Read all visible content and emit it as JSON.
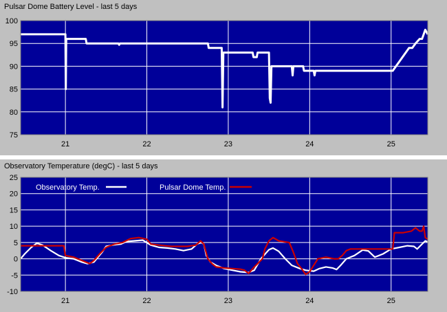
{
  "chart_data": [
    {
      "type": "line",
      "title": "Pulsar Dome Battery Level - last 5 days",
      "xlim": [
        20.45,
        25.45
      ],
      "ylim": [
        75,
        100
      ],
      "x_ticks": [
        21,
        22,
        23,
        24,
        25
      ],
      "y_ticks": [
        75,
        80,
        85,
        90,
        95,
        100
      ],
      "grid": true,
      "colors": {
        "plot_bg": "#000099",
        "grid": "#ffffff",
        "line": "#ffffff"
      },
      "series": [
        {
          "color": "#ffffff",
          "points": [
            [
              20.45,
              97
            ],
            [
              21.0,
              97
            ],
            [
              21.005,
              85
            ],
            [
              21.01,
              96
            ],
            [
              21.25,
              96
            ],
            [
              21.26,
              95
            ],
            [
              21.65,
              95
            ],
            [
              21.66,
              94.7
            ],
            [
              21.67,
              95
            ],
            [
              22.75,
              95
            ],
            [
              22.76,
              94
            ],
            [
              22.92,
              94
            ],
            [
              22.93,
              81
            ],
            [
              22.94,
              93
            ],
            [
              23.3,
              93
            ],
            [
              23.31,
              92
            ],
            [
              23.35,
              92
            ],
            [
              23.36,
              93
            ],
            [
              23.5,
              93
            ],
            [
              23.51,
              83
            ],
            [
              23.52,
              82
            ],
            [
              23.53,
              90
            ],
            [
              23.78,
              90
            ],
            [
              23.79,
              88
            ],
            [
              23.8,
              90
            ],
            [
              23.92,
              90
            ],
            [
              23.93,
              89
            ],
            [
              24.05,
              89
            ],
            [
              24.06,
              88
            ],
            [
              24.07,
              89
            ],
            [
              24.3,
              89
            ],
            [
              24.6,
              89
            ],
            [
              25.02,
              89
            ],
            [
              25.06,
              90
            ],
            [
              25.1,
              91
            ],
            [
              25.14,
              92
            ],
            [
              25.18,
              93
            ],
            [
              25.22,
              94
            ],
            [
              25.26,
              94
            ],
            [
              25.3,
              95
            ],
            [
              25.35,
              96
            ],
            [
              25.38,
              96
            ],
            [
              25.4,
              97
            ],
            [
              25.42,
              98
            ],
            [
              25.45,
              97
            ]
          ]
        }
      ]
    },
    {
      "type": "line",
      "title": "Observatory Temperature (degC) - last 5 days",
      "xlim": [
        20.45,
        25.45
      ],
      "ylim": [
        -10,
        25
      ],
      "x_ticks": [
        21,
        22,
        23,
        24,
        25
      ],
      "y_ticks": [
        -10,
        -5,
        0,
        5,
        10,
        15,
        20,
        25
      ],
      "grid": true,
      "legend": "top",
      "colors": {
        "plot_bg": "#000099",
        "grid": "#ffffff"
      },
      "series": [
        {
          "name": "Observatory Temp.",
          "color": "#ffffff",
          "points": [
            [
              20.45,
              0
            ],
            [
              20.5,
              1.5
            ],
            [
              20.58,
              3.5
            ],
            [
              20.65,
              4.8
            ],
            [
              20.72,
              4.2
            ],
            [
              20.82,
              2.5
            ],
            [
              20.92,
              1
            ],
            [
              21.0,
              0.3
            ],
            [
              21.1,
              0
            ],
            [
              21.2,
              -1
            ],
            [
              21.27,
              -1.5
            ],
            [
              21.35,
              -1
            ],
            [
              21.45,
              2
            ],
            [
              21.5,
              3.8
            ],
            [
              21.6,
              4.3
            ],
            [
              21.68,
              4.5
            ],
            [
              21.75,
              5.3
            ],
            [
              21.85,
              5.5
            ],
            [
              21.95,
              5.7
            ],
            [
              22.05,
              4.2
            ],
            [
              22.15,
              3.5
            ],
            [
              22.25,
              3.3
            ],
            [
              22.35,
              3
            ],
            [
              22.45,
              2.5
            ],
            [
              22.55,
              3
            ],
            [
              22.62,
              4.6
            ],
            [
              22.67,
              5
            ],
            [
              22.7,
              4.5
            ],
            [
              22.73,
              1
            ],
            [
              22.78,
              -1
            ],
            [
              22.85,
              -2
            ],
            [
              22.95,
              -3
            ],
            [
              23.05,
              -3.5
            ],
            [
              23.15,
              -4
            ],
            [
              23.25,
              -4.2
            ],
            [
              23.32,
              -3.5
            ],
            [
              23.4,
              0
            ],
            [
              23.5,
              2.8
            ],
            [
              23.55,
              3.3
            ],
            [
              23.62,
              2.3
            ],
            [
              23.7,
              0
            ],
            [
              23.78,
              -2
            ],
            [
              23.88,
              -3
            ],
            [
              23.95,
              -3.5
            ],
            [
              24.05,
              -3.8
            ],
            [
              24.12,
              -3
            ],
            [
              24.2,
              -2.5
            ],
            [
              24.28,
              -2.8
            ],
            [
              24.33,
              -3.3
            ],
            [
              24.38,
              -2
            ],
            [
              24.45,
              0
            ],
            [
              24.55,
              1
            ],
            [
              24.65,
              2.7
            ],
            [
              24.72,
              2.4
            ],
            [
              24.8,
              0.5
            ],
            [
              24.9,
              1.5
            ],
            [
              25.0,
              3
            ],
            [
              25.1,
              3.5
            ],
            [
              25.2,
              4
            ],
            [
              25.28,
              3.8
            ],
            [
              25.32,
              3
            ],
            [
              25.38,
              4.5
            ],
            [
              25.42,
              5.5
            ],
            [
              25.45,
              5.2
            ]
          ]
        },
        {
          "name": "Pulsar Dome Temp.",
          "color": "#cc0000",
          "points": [
            [
              20.45,
              4
            ],
            [
              20.98,
              4
            ],
            [
              21.0,
              1
            ],
            [
              21.1,
              0.5
            ],
            [
              21.2,
              -0.5
            ],
            [
              21.3,
              -1.5
            ],
            [
              21.35,
              -0.5
            ],
            [
              21.42,
              1.5
            ],
            [
              21.5,
              3.5
            ],
            [
              21.6,
              4.5
            ],
            [
              21.7,
              5
            ],
            [
              21.8,
              6.2
            ],
            [
              21.9,
              6.5
            ],
            [
              22.0,
              6
            ],
            [
              22.05,
              4.5
            ],
            [
              22.15,
              4.2
            ],
            [
              22.3,
              3.8
            ],
            [
              22.5,
              3.8
            ],
            [
              22.6,
              4.2
            ],
            [
              22.66,
              5.5
            ],
            [
              22.7,
              4.5
            ],
            [
              22.75,
              0
            ],
            [
              22.8,
              -1.5
            ],
            [
              22.85,
              -2.5
            ],
            [
              22.95,
              -2.8
            ],
            [
              23.05,
              -3
            ],
            [
              23.15,
              -3.2
            ],
            [
              23.2,
              -3.5
            ],
            [
              23.25,
              -4.5
            ],
            [
              23.32,
              -2.5
            ],
            [
              23.38,
              -1
            ],
            [
              23.42,
              0
            ],
            [
              23.45,
              3
            ],
            [
              23.5,
              5.5
            ],
            [
              23.55,
              6.5
            ],
            [
              23.62,
              5.5
            ],
            [
              23.75,
              5
            ],
            [
              23.8,
              2
            ],
            [
              23.85,
              -1.5
            ],
            [
              23.9,
              -3
            ],
            [
              23.95,
              -4.8
            ],
            [
              24.0,
              -4
            ],
            [
              24.05,
              -2
            ],
            [
              24.1,
              0
            ],
            [
              24.2,
              0.5
            ],
            [
              24.3,
              0
            ],
            [
              24.35,
              0
            ],
            [
              24.4,
              1
            ],
            [
              24.45,
              2.5
            ],
            [
              24.5,
              3
            ],
            [
              24.6,
              3
            ],
            [
              24.7,
              3
            ],
            [
              24.8,
              3
            ],
            [
              24.9,
              3
            ],
            [
              25.0,
              3
            ],
            [
              25.02,
              3
            ],
            [
              25.04,
              8
            ],
            [
              25.15,
              8
            ],
            [
              25.25,
              8.5
            ],
            [
              25.3,
              9.5
            ],
            [
              25.35,
              8.5
            ],
            [
              25.38,
              8.5
            ],
            [
              25.4,
              10
            ],
            [
              25.42,
              6.5
            ],
            [
              25.45,
              6
            ]
          ]
        }
      ]
    }
  ]
}
